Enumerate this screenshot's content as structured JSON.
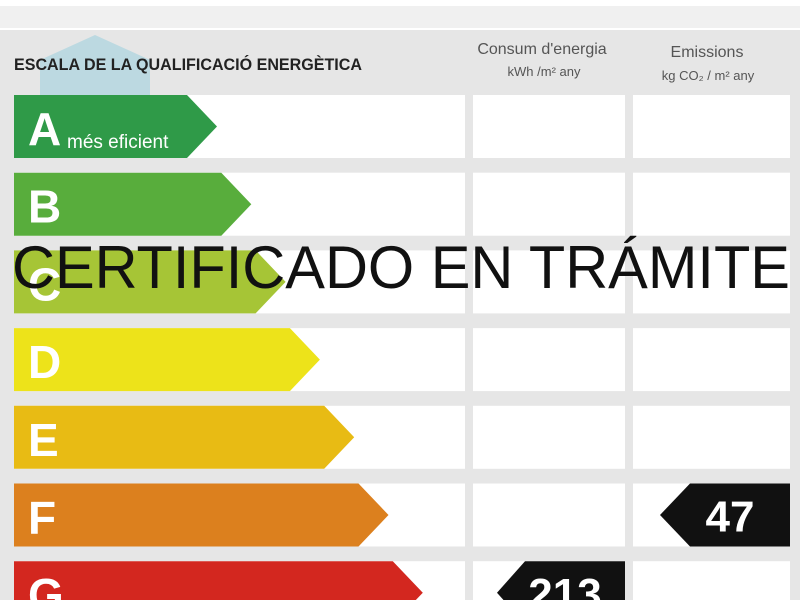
{
  "header": {
    "title": "ESCALA DE LA QUALIFICACIÓ ENERGÈTICA"
  },
  "columns": [
    {
      "title": "Consum d'energia",
      "unit": "kWh /m² any"
    },
    {
      "title": "Emissions",
      "unit": "kg CO₂ / m² any"
    }
  ],
  "rows": [
    {
      "letter": "A",
      "label": "més eficient",
      "color": "#2f9a48"
    },
    {
      "letter": "B",
      "color": "#58ad3c"
    },
    {
      "letter": "C",
      "color": "#a6c536"
    },
    {
      "letter": "D",
      "color": "#ede31a"
    },
    {
      "letter": "E",
      "color": "#e8bb14"
    },
    {
      "letter": "F",
      "color": "#dc801e",
      "emissions": "47"
    },
    {
      "letter": "G",
      "color": "#d3271f",
      "consum": "213"
    }
  ],
  "overlay": "CERTIFICADO EN TRÁMITE"
}
